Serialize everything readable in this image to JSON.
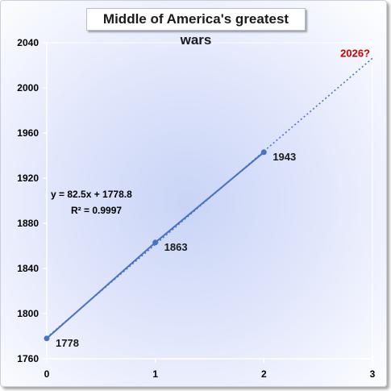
{
  "chart_data": {
    "type": "scatter",
    "title": "Middle of America's greatest wars",
    "xlabel": "",
    "ylabel": "",
    "xlim": [
      0,
      3
    ],
    "ylim": [
      1760,
      2040
    ],
    "x_ticks": [
      "0",
      "1",
      "2",
      "3"
    ],
    "y_ticks": [
      "1760",
      "1800",
      "1840",
      "1880",
      "1920",
      "1960",
      "2000",
      "2040"
    ],
    "grid": false,
    "legend": "none",
    "series": [
      {
        "x": [
          0,
          1,
          2
        ],
        "y": [
          1778,
          1863,
          1943
        ],
        "data_labels": [
          "1778",
          "1863",
          "1943"
        ],
        "color": "#4a72c4"
      }
    ],
    "trendline": {
      "type": "linear",
      "slope": 82.5,
      "intercept": 1778.8,
      "x_range": [
        0,
        3
      ],
      "style": "dotted",
      "color": "#4a72c4",
      "equation_text": "y = 82.5x + 1778.8",
      "r2_text": "R² = 0.9997"
    },
    "annotations": [
      {
        "text": "2026?",
        "x": 3,
        "y": 2026,
        "color": "#cc0000"
      }
    ]
  }
}
